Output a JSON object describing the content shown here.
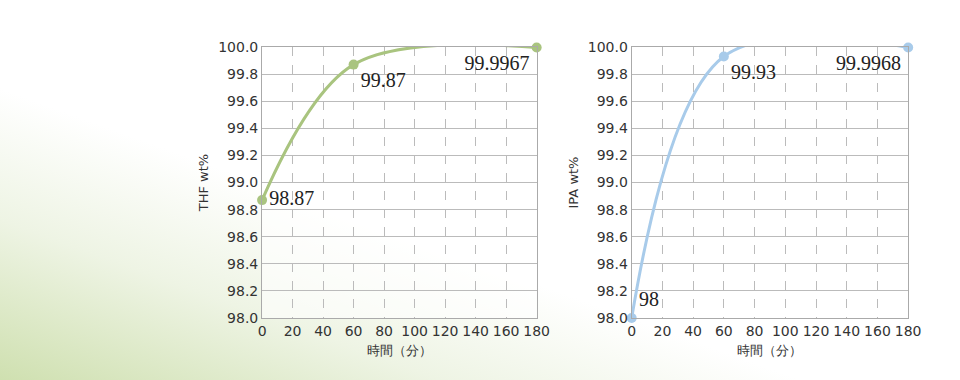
{
  "chart_data": [
    {
      "type": "line",
      "x_label": "時間（分）",
      "y_label": "THF wt%",
      "x": [
        0,
        60,
        180
      ],
      "values": [
        98.87,
        99.87,
        99.9967
      ],
      "color": "#a9c47f",
      "marker": "circle",
      "line_style": "smooth",
      "data_labels": true,
      "grid": true,
      "xlim": [
        0,
        180
      ],
      "xticks": [
        0,
        20,
        40,
        60,
        80,
        100,
        120,
        140,
        160,
        180
      ],
      "ylim": [
        98,
        100
      ],
      "yticks": [
        {
          "value": 98,
          "label": "98.0"
        },
        98.2,
        98.4,
        98.6,
        98.8,
        {
          "value": 99,
          "label": "99.0"
        },
        99.2,
        99.4,
        99.6,
        99.8,
        {
          "value": 100,
          "label": "100.0"
        }
      ]
    },
    {
      "type": "line",
      "x_label": "時間（分）",
      "y_label": "IPA wt%",
      "x": [
        0,
        60,
        180
      ],
      "values": [
        98,
        99.93,
        99.9968
      ],
      "color": "#a8cbea",
      "marker": "circle",
      "line_style": "smooth",
      "data_labels": true,
      "grid": true,
      "xlim": [
        0,
        180
      ],
      "xticks": [
        0,
        20,
        40,
        60,
        80,
        100,
        120,
        140,
        160,
        180
      ],
      "ylim": [
        98,
        100
      ],
      "yticks": [
        {
          "value": 98,
          "label": "98.0"
        },
        98.2,
        98.4,
        98.6,
        98.8,
        {
          "value": 99,
          "label": "99.0"
        },
        99.2,
        99.4,
        99.6,
        99.8,
        {
          "value": 100,
          "label": "100.0"
        }
      ]
    }
  ]
}
